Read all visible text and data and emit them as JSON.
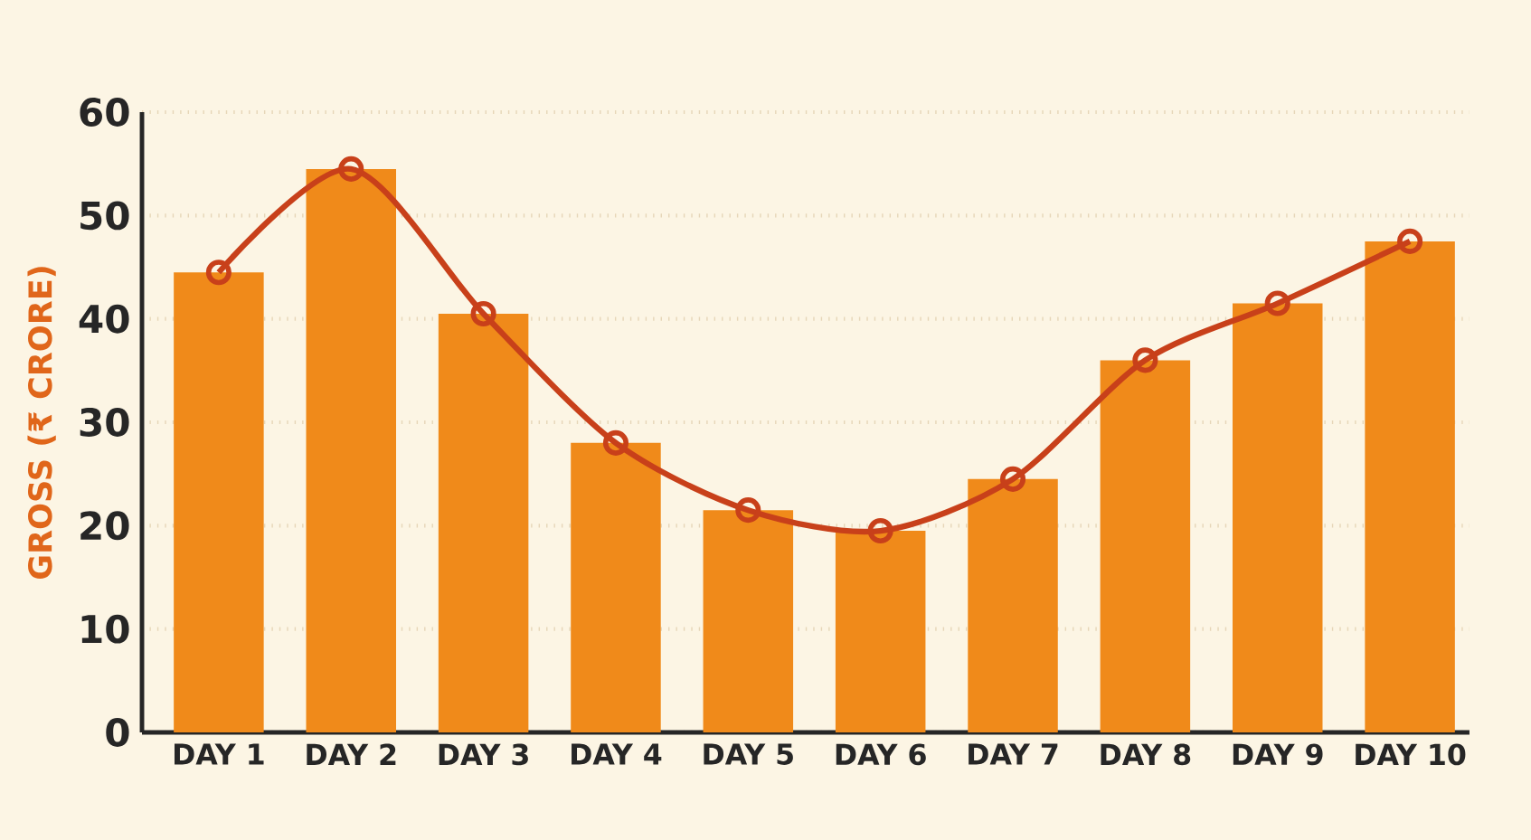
{
  "chart_data": {
    "type": "bar",
    "ylabel": "GROSS (₹ CRORE)",
    "categories": [
      "DAY 1",
      "DAY 2",
      "DAY 3",
      "DAY 4",
      "DAY 5",
      "DAY 6",
      "DAY 7",
      "DAY 8",
      "DAY 9",
      "DAY 10"
    ],
    "series": [
      {
        "color": "#f08a1a",
        "values": [
          44.5,
          54.5,
          40.5,
          28,
          21.5,
          19.5,
          24.5,
          36,
          41.5,
          47.5
        ]
      },
      {
        "type": "line",
        "color": "#c8401a",
        "values": [
          44.5,
          54.5,
          40.5,
          28,
          21.5,
          19.5,
          24.5,
          36,
          41.5,
          47.5
        ]
      }
    ],
    "ylim": [
      0,
      60
    ],
    "yticks": [
      0,
      10,
      20,
      30,
      40,
      50,
      60
    ],
    "grid": "y",
    "marker": "circle"
  }
}
